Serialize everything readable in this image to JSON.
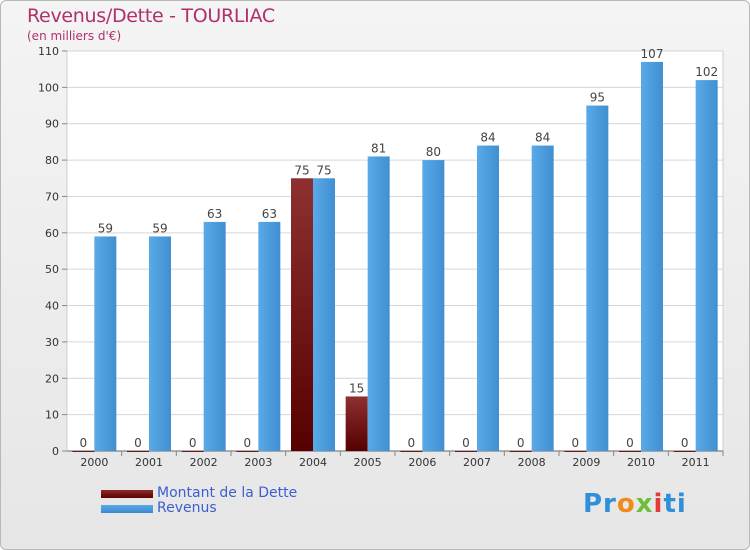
{
  "chart_data": {
    "type": "bar",
    "title": "Revenus/Dette - TOURLIAC",
    "subtitle": "(en milliers d'€)",
    "xlabel": "",
    "ylabel": "",
    "ylim": [
      0,
      110
    ],
    "yticks": [
      0,
      10,
      20,
      30,
      40,
      50,
      60,
      70,
      80,
      90,
      100,
      110
    ],
    "grid": true,
    "categories": [
      "2000",
      "2001",
      "2002",
      "2003",
      "2004",
      "2005",
      "2006",
      "2007",
      "2008",
      "2009",
      "2010",
      "2011"
    ],
    "series": [
      {
        "name": "Montant de la Dette",
        "color": "#7a1414",
        "values": [
          0,
          0,
          0,
          0,
          75,
          15,
          0,
          0,
          0,
          0,
          0,
          0
        ]
      },
      {
        "name": "Revenus",
        "color": "#4a9fe0",
        "values": [
          59,
          59,
          63,
          63,
          75,
          81,
          80,
          84,
          84,
          95,
          107,
          102
        ]
      }
    ],
    "legend_position": "bottom-left"
  },
  "brand": {
    "logo_text": "Proxiti"
  }
}
